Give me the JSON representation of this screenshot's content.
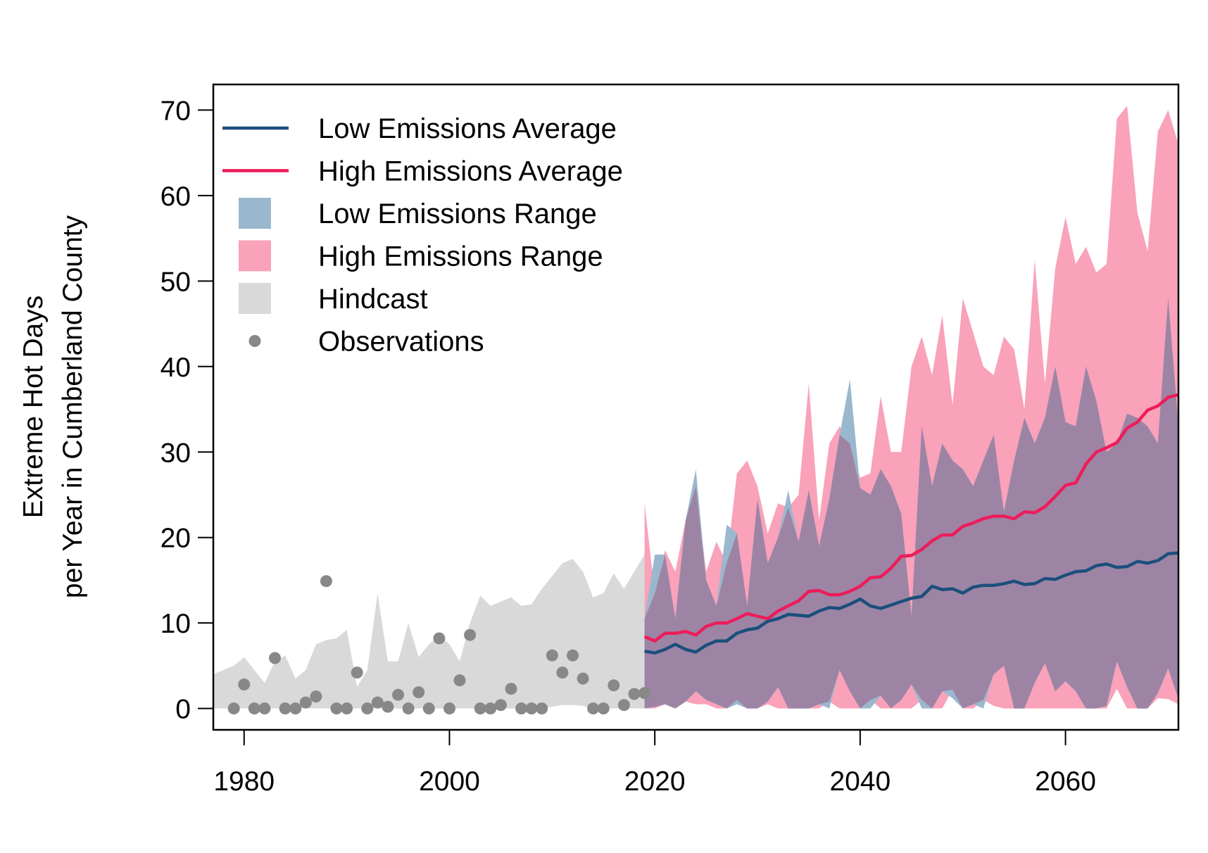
{
  "chart_data": {
    "type": "area",
    "ylabel_lines": [
      "Extreme Hot Days",
      "per Year in Cumberland County"
    ],
    "xlabel": "",
    "xlim": [
      1977,
      2071
    ],
    "ylim": [
      -2.5,
      73
    ],
    "x_ticks": [
      1980,
      2000,
      2020,
      2040,
      2060
    ],
    "y_ticks": [
      0,
      10,
      20,
      30,
      40,
      50,
      60,
      70
    ],
    "grid": false,
    "legend_position": "top-left",
    "colors": {
      "low_avg": "#1b4f7c",
      "high_avg": "#ee1c5a",
      "low_range": "#9ab8cd",
      "high_range": "#f9a2ba",
      "overlap": "#9d84a5",
      "hindcast": "#d9d9d9",
      "observations": "#888888"
    },
    "legend": [
      {
        "label": "Low Emissions Average",
        "kind": "line",
        "color_key": "low_avg"
      },
      {
        "label": "High Emissions Average",
        "kind": "line",
        "color_key": "high_avg"
      },
      {
        "label": "Low Emissions Range",
        "kind": "box",
        "color_key": "low_range"
      },
      {
        "label": "High Emissions Range",
        "kind": "box",
        "color_key": "high_range"
      },
      {
        "label": "Hindcast",
        "kind": "box",
        "color_key": "hindcast"
      },
      {
        "label": "Observations",
        "kind": "dot",
        "color_key": "observations"
      }
    ],
    "hindcast": {
      "x": [
        1977,
        1978,
        1979,
        1980,
        1981,
        1982,
        1983,
        1984,
        1985,
        1986,
        1987,
        1988,
        1989,
        1990,
        1991,
        1992,
        1993,
        1994,
        1995,
        1996,
        1997,
        1998,
        1999,
        2000,
        2001,
        2002,
        2003,
        2004,
        2005,
        2006,
        2007,
        2008,
        2009,
        2010,
        2011,
        2012,
        2013,
        2014,
        2015,
        2016,
        2017,
        2018,
        2019
      ],
      "low": [
        0,
        0,
        0,
        0,
        0,
        0,
        0,
        0,
        0,
        0,
        0,
        0,
        0,
        0,
        0,
        0,
        0,
        0,
        0,
        0,
        0,
        0,
        0,
        0,
        0,
        0,
        0,
        0,
        0,
        0,
        0,
        0,
        0,
        0.2,
        0.4,
        0.4,
        0.3,
        0,
        0,
        0,
        0,
        0,
        0
      ],
      "high": [
        4,
        4.5,
        5,
        6,
        4.5,
        3,
        5.5,
        6.2,
        3.5,
        4.5,
        7.5,
        8,
        8.2,
        9.2,
        2.5,
        4.5,
        13.5,
        5.5,
        5.5,
        10,
        6,
        7.5,
        8.5,
        7.5,
        5.5,
        10,
        13.2,
        12,
        12.5,
        13,
        12,
        12.2,
        14,
        15.5,
        17,
        17.5,
        16,
        13,
        13.5,
        15.8,
        14,
        16,
        18
      ]
    },
    "observations": {
      "x": [
        1979,
        1980,
        1981,
        1982,
        1983,
        1984,
        1985,
        1986,
        1987,
        1988,
        1989,
        1990,
        1991,
        1992,
        1993,
        1994,
        1995,
        1996,
        1997,
        1998,
        1999,
        2000,
        2001,
        2002,
        2003,
        2004,
        2005,
        2006,
        2007,
        2008,
        2009,
        2010,
        2011,
        2012,
        2013,
        2014,
        2015,
        2016,
        2017,
        2018,
        2019
      ],
      "y": [
        0,
        2.8,
        0,
        0,
        5.9,
        0,
        0,
        0.7,
        1.4,
        14.9,
        0,
        0,
        4.2,
        0,
        0.7,
        0.2,
        1.6,
        0,
        1.9,
        0,
        8.2,
        0,
        3.3,
        8.6,
        0,
        0,
        0.4,
        2.3,
        0,
        0,
        0,
        6.2,
        4.2,
        6.2,
        3.5,
        0,
        0,
        2.7,
        0.4,
        1.7,
        1.8
      ]
    },
    "low_range": {
      "x": [
        2019,
        2020,
        2021,
        2022,
        2023,
        2024,
        2025,
        2026,
        2027,
        2028,
        2029,
        2030,
        2031,
        2032,
        2033,
        2034,
        2035,
        2036,
        2037,
        2038,
        2039,
        2040,
        2041,
        2042,
        2043,
        2044,
        2045,
        2046,
        2047,
        2048,
        2049,
        2050,
        2051,
        2052,
        2053,
        2054,
        2055,
        2056,
        2057,
        2058,
        2059,
        2060,
        2061,
        2062,
        2063,
        2064,
        2065,
        2066,
        2067,
        2068,
        2069,
        2070,
        2071
      ],
      "low": [
        0,
        0.2,
        0.5,
        0,
        0.8,
        2,
        1,
        0.5,
        0,
        0.5,
        0,
        0,
        0.8,
        2.5,
        0,
        0,
        0,
        0.5,
        0,
        4.5,
        2,
        0,
        0,
        1.5,
        0,
        1,
        2.8,
        0,
        0,
        2,
        1.2,
        0,
        0.5,
        0,
        4,
        5,
        0,
        0,
        3,
        5.3,
        2,
        3.2,
        2,
        0,
        0,
        0.3,
        5.5,
        2.5,
        0,
        0,
        1.8,
        4.7,
        1.1
      ],
      "high": [
        10.5,
        18,
        18,
        10.5,
        22,
        28,
        15,
        12,
        21.5,
        20.5,
        12,
        24.5,
        17,
        20,
        25.5,
        19.5,
        25.5,
        19,
        24.5,
        32,
        38.5,
        25.8,
        25,
        28,
        26,
        22.8,
        10.8,
        33,
        26,
        31,
        29,
        28,
        26,
        29,
        32,
        23,
        29,
        34,
        31,
        34,
        40,
        33.5,
        33,
        40,
        36,
        30,
        31,
        34.5,
        34,
        33,
        31,
        48,
        33
      ]
    },
    "high_range": {
      "x": [
        2019,
        2020,
        2021,
        2022,
        2023,
        2024,
        2025,
        2026,
        2027,
        2028,
        2029,
        2030,
        2031,
        2032,
        2033,
        2034,
        2035,
        2036,
        2037,
        2038,
        2039,
        2040,
        2041,
        2042,
        2043,
        2044,
        2045,
        2046,
        2047,
        2048,
        2049,
        2050,
        2051,
        2052,
        2053,
        2054,
        2055,
        2056,
        2057,
        2058,
        2059,
        2060,
        2061,
        2062,
        2063,
        2064,
        2065,
        2066,
        2067,
        2068,
        2069,
        2070,
        2071
      ],
      "low": [
        0,
        0,
        0.5,
        0,
        0.8,
        0.5,
        0.5,
        0,
        0,
        1,
        0,
        0,
        0.5,
        0,
        0,
        0,
        0,
        0,
        0.8,
        0,
        0,
        0,
        1,
        0,
        0,
        0,
        0,
        1,
        0,
        0,
        2.2,
        0,
        0,
        1,
        0.3,
        0,
        0,
        0,
        0,
        0,
        0,
        0,
        0,
        0,
        0,
        0,
        2.3,
        0,
        0,
        0,
        1.2,
        1.1,
        0.5
      ],
      "high": [
        24,
        13.5,
        18.5,
        16,
        22,
        26,
        16,
        19.5,
        17,
        27.5,
        29,
        26,
        20.5,
        24,
        23.5,
        25,
        38,
        22,
        31,
        33,
        31,
        27,
        27.5,
        36.5,
        30,
        30,
        40,
        43.5,
        39,
        46,
        35.5,
        48,
        44,
        40,
        39,
        43.5,
        42,
        35,
        52.5,
        38,
        51.5,
        57.5,
        52,
        54,
        51,
        52,
        69,
        70.5,
        58,
        53.5,
        67.5,
        70,
        66
      ]
    },
    "low_average": {
      "x": [
        2019,
        2020,
        2021,
        2022,
        2023,
        2024,
        2025,
        2026,
        2027,
        2028,
        2029,
        2030,
        2031,
        2032,
        2033,
        2034,
        2035,
        2036,
        2037,
        2038,
        2039,
        2040,
        2041,
        2042,
        2043,
        2044,
        2045,
        2046,
        2047,
        2048,
        2049,
        2050,
        2051,
        2052,
        2053,
        2054,
        2055,
        2056,
        2057,
        2058,
        2059,
        2060,
        2061,
        2062,
        2063,
        2064,
        2065,
        2066,
        2067,
        2068,
        2069,
        2070,
        2071
      ],
      "y": [
        6.7,
        6.5,
        6.9,
        7.5,
        6.9,
        6.6,
        7.4,
        7.9,
        7.9,
        8.8,
        9.2,
        9.4,
        10.2,
        10.5,
        11.0,
        10.9,
        10.8,
        11.4,
        11.8,
        11.7,
        12.2,
        12.8,
        12.0,
        11.7,
        12.1,
        12.5,
        12.9,
        13.1,
        14.3,
        13.9,
        14.0,
        13.5,
        14.2,
        14.4,
        14.4,
        14.6,
        14.9,
        14.5,
        14.6,
        15.2,
        15.1,
        15.6,
        16.0,
        16.1,
        16.7,
        16.9,
        16.5,
        16.6,
        17.2,
        17.0,
        17.3,
        18.1,
        18.2
      ]
    },
    "high_average": {
      "x": [
        2019,
        2020,
        2021,
        2022,
        2023,
        2024,
        2025,
        2026,
        2027,
        2028,
        2029,
        2030,
        2031,
        2032,
        2033,
        2034,
        2035,
        2036,
        2037,
        2038,
        2039,
        2040,
        2041,
        2042,
        2043,
        2044,
        2045,
        2046,
        2047,
        2048,
        2049,
        2050,
        2051,
        2052,
        2053,
        2054,
        2055,
        2056,
        2057,
        2058,
        2059,
        2060,
        2061,
        2062,
        2063,
        2064,
        2065,
        2066,
        2067,
        2068,
        2069,
        2070,
        2071
      ],
      "y": [
        8.4,
        7.9,
        8.8,
        8.8,
        9.0,
        8.6,
        9.6,
        10.0,
        10.0,
        10.5,
        11.1,
        10.8,
        10.5,
        11.4,
        12.0,
        12.6,
        13.7,
        13.8,
        13.3,
        13.3,
        13.7,
        14.3,
        15.3,
        15.4,
        16.4,
        17.8,
        17.9,
        18.6,
        19.6,
        20.3,
        20.3,
        21.3,
        21.7,
        22.2,
        22.5,
        22.5,
        22.2,
        23.0,
        22.9,
        23.6,
        24.8,
        26.1,
        26.4,
        28.6,
        30.0,
        30.5,
        31.1,
        32.8,
        33.5,
        34.9,
        35.4,
        36.4,
        36.7
      ]
    }
  }
}
